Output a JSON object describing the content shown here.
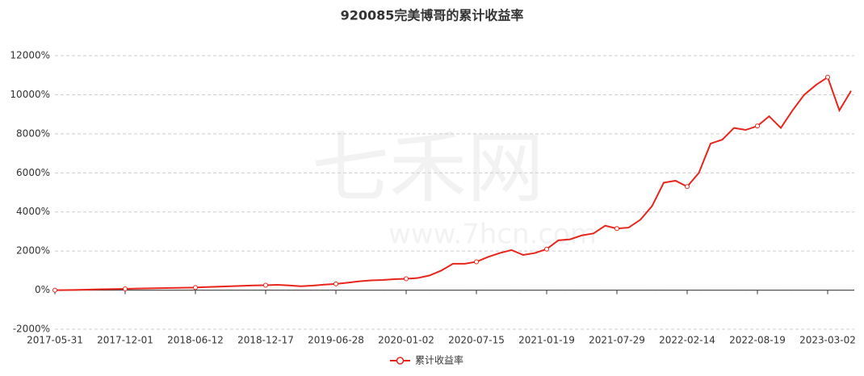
{
  "chart_data": {
    "type": "line",
    "title": "920085完美博哥的累计收益率",
    "watermark": "七禾网",
    "watermark_url": "www.7hcn.com",
    "categories": [
      "2017-05-31",
      null,
      null,
      null,
      null,
      null,
      "2017-12-01",
      null,
      null,
      null,
      null,
      null,
      "2018-06-12",
      null,
      null,
      null,
      null,
      null,
      "2018-12-17",
      null,
      null,
      null,
      null,
      null,
      "2019-06-28",
      null,
      null,
      null,
      null,
      null,
      "2020-01-02",
      null,
      null,
      null,
      null,
      null,
      "2020-07-15",
      null,
      null,
      null,
      null,
      null,
      "2021-01-19",
      null,
      null,
      null,
      null,
      null,
      "2021-07-29",
      null,
      null,
      null,
      null,
      null,
      "2022-02-14",
      null,
      null,
      null,
      null,
      null,
      "2022-08-19",
      null,
      null,
      null,
      null,
      null,
      "2023-03-02",
      null,
      null
    ],
    "series": [
      {
        "name": "累计收益率",
        "color": "#e8251b",
        "values": [
          0,
          5,
          15,
          30,
          45,
          55,
          65,
          80,
          90,
          100,
          110,
          120,
          130,
          160,
          180,
          200,
          220,
          240,
          250,
          270,
          240,
          200,
          230,
          280,
          320,
          380,
          450,
          500,
          520,
          560,
          580,
          620,
          750,
          1000,
          1350,
          1350,
          1450,
          1700,
          1900,
          2050,
          1800,
          1900,
          2100,
          2550,
          2600,
          2800,
          2900,
          3300,
          3150,
          3200,
          3600,
          4300,
          5500,
          5600,
          5300,
          6000,
          7500,
          7700,
          8300,
          8200,
          8400,
          8900,
          8300,
          9200,
          10000,
          10500,
          10900,
          9200,
          10200
        ]
      }
    ],
    "ylim": [
      -2000,
      12000
    ],
    "yticks": [
      {
        "value": -2000,
        "label": "-2000%"
      },
      {
        "value": 0,
        "label": "0%"
      },
      {
        "value": 2000,
        "label": "2000%"
      },
      {
        "value": 4000,
        "label": "4000%"
      },
      {
        "value": 6000,
        "label": "6000%"
      },
      {
        "value": 8000,
        "label": "8000%"
      },
      {
        "value": 10000,
        "label": "10000%"
      },
      {
        "value": 12000,
        "label": "12000%"
      }
    ],
    "grid": true
  }
}
